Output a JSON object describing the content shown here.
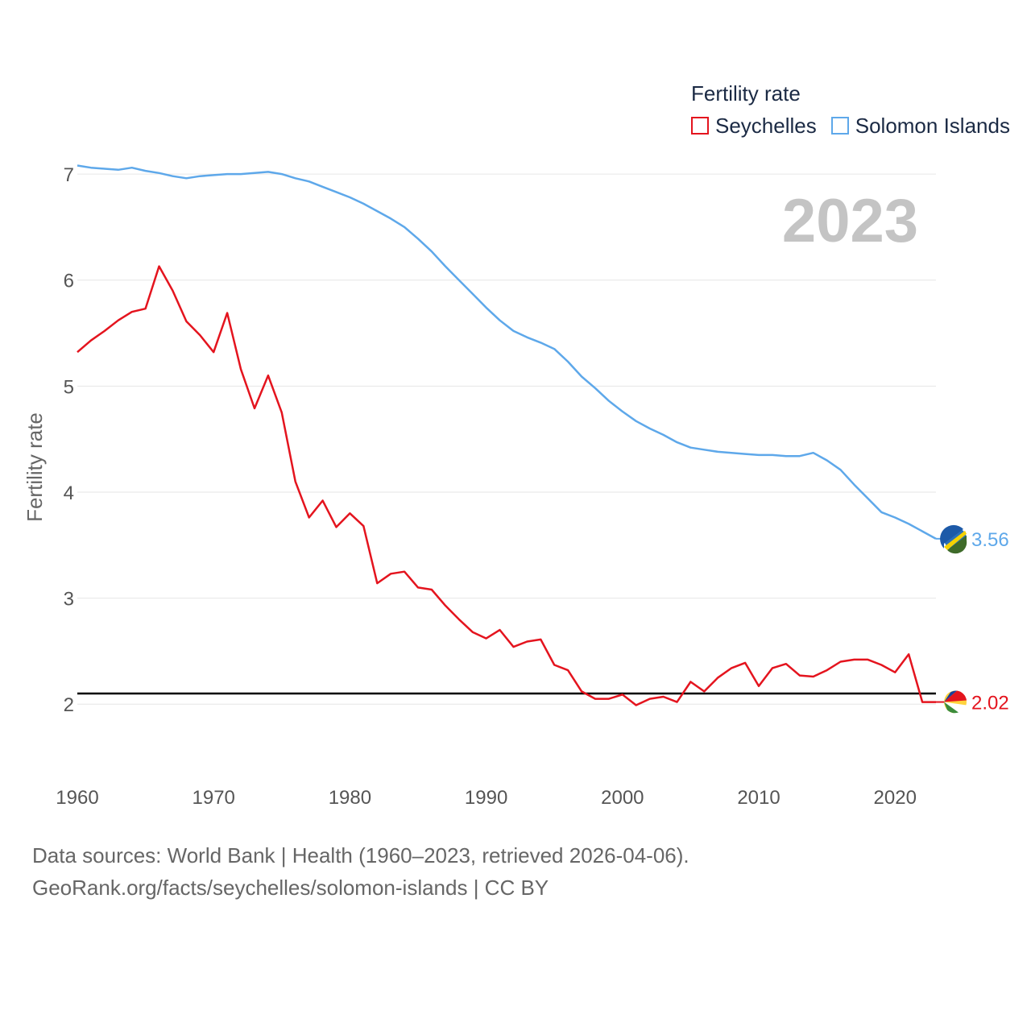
{
  "legend": {
    "title": "Fertility rate",
    "items": [
      {
        "label": "Seychelles",
        "color": "#e4141e"
      },
      {
        "label": "Solomon Islands",
        "color": "#5ea8ea"
      }
    ]
  },
  "year_label": "2023",
  "source": {
    "line1": "Data sources: World Bank | Health (1960–2023, retrieved 2026-04-06).",
    "line2": "GeoRank.org/facts/seychelles/solomon-islands | CC BY"
  },
  "chart_data": {
    "type": "line",
    "title": "Fertility rate",
    "xlabel": "",
    "ylabel": "Fertility rate",
    "xlim": [
      1960,
      2023
    ],
    "ylim": [
      1.5,
      7.35
    ],
    "x_ticks": [
      1960,
      1970,
      1980,
      1990,
      2000,
      2010,
      2020
    ],
    "y_ticks": [
      2,
      3,
      4,
      5,
      6,
      7
    ],
    "reference_line": 2.1,
    "x": [
      1960,
      1961,
      1962,
      1963,
      1964,
      1965,
      1966,
      1967,
      1968,
      1969,
      1970,
      1971,
      1972,
      1973,
      1974,
      1975,
      1976,
      1977,
      1978,
      1979,
      1980,
      1981,
      1982,
      1983,
      1984,
      1985,
      1986,
      1987,
      1988,
      1989,
      1990,
      1991,
      1992,
      1993,
      1994,
      1995,
      1996,
      1997,
      1998,
      1999,
      2000,
      2001,
      2002,
      2003,
      2004,
      2005,
      2006,
      2007,
      2008,
      2009,
      2010,
      2011,
      2012,
      2013,
      2014,
      2015,
      2016,
      2017,
      2018,
      2019,
      2020,
      2021,
      2022,
      2023
    ],
    "series": [
      {
        "name": "Seychelles",
        "color": "#e4141e",
        "end_label": "2.02",
        "values": [
          5.32,
          5.43,
          5.52,
          5.62,
          5.7,
          5.73,
          6.13,
          5.9,
          5.61,
          5.48,
          5.32,
          5.69,
          5.16,
          4.79,
          5.1,
          4.75,
          4.1,
          3.76,
          3.92,
          3.67,
          3.8,
          3.68,
          3.14,
          3.23,
          3.25,
          3.1,
          3.08,
          2.93,
          2.8,
          2.68,
          2.62,
          2.7,
          2.54,
          2.59,
          2.61,
          2.37,
          2.32,
          2.12,
          2.05,
          2.05,
          2.09,
          1.99,
          2.05,
          2.07,
          2.02,
          2.21,
          2.12,
          2.25,
          2.34,
          2.39,
          2.17,
          2.34,
          2.38,
          2.27,
          2.26,
          2.32,
          2.4,
          2.42,
          2.42,
          2.37,
          2.3,
          2.47,
          2.02,
          2.02
        ]
      },
      {
        "name": "Solomon Islands",
        "color": "#5ea8ea",
        "end_label": "3.56",
        "values": [
          7.08,
          7.06,
          7.05,
          7.04,
          7.06,
          7.03,
          7.01,
          6.98,
          6.96,
          6.98,
          6.99,
          7.0,
          7.0,
          7.01,
          7.02,
          7.0,
          6.96,
          6.93,
          6.88,
          6.83,
          6.78,
          6.72,
          6.65,
          6.58,
          6.5,
          6.39,
          6.27,
          6.13,
          6.0,
          5.87,
          5.74,
          5.62,
          5.52,
          5.46,
          5.41,
          5.35,
          5.23,
          5.09,
          4.98,
          4.86,
          4.76,
          4.67,
          4.6,
          4.54,
          4.47,
          4.42,
          4.4,
          4.38,
          4.37,
          4.36,
          4.35,
          4.35,
          4.34,
          4.34,
          4.37,
          4.3,
          4.21,
          4.07,
          3.94,
          3.81,
          3.76,
          3.7,
          3.63,
          3.56
        ]
      }
    ]
  }
}
